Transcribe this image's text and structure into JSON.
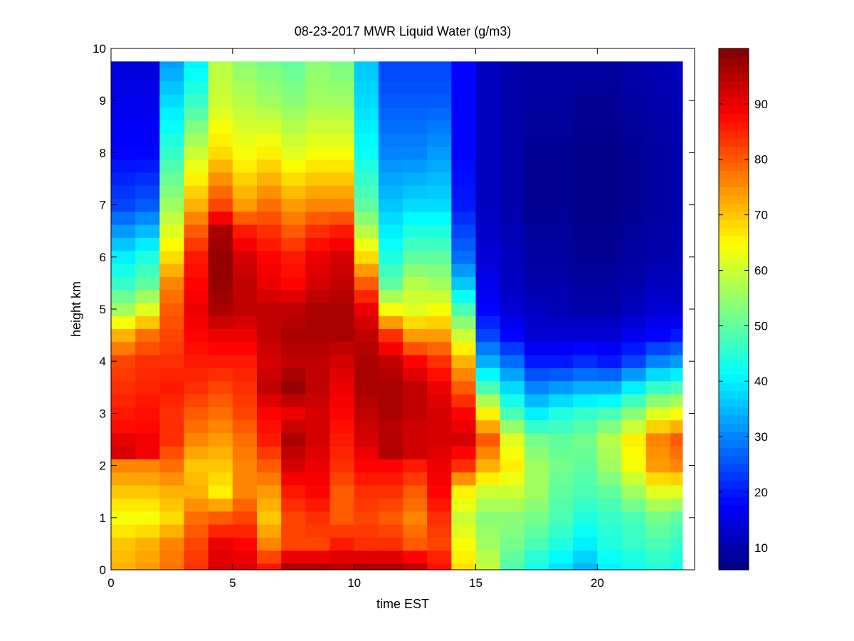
{
  "chart_data": {
    "type": "heatmap",
    "title": "08-23-2017 MWR Liquid Water (g/m3)",
    "xlabel": "time EST",
    "ylabel": "height km",
    "xlim": [
      0,
      24
    ],
    "ylim": [
      0,
      10
    ],
    "xticks": [
      0,
      5,
      10,
      15,
      20
    ],
    "yticks": [
      0,
      1,
      2,
      3,
      4,
      5,
      6,
      7,
      8,
      9,
      10
    ],
    "x": [
      0.5,
      1.5,
      2.5,
      3.5,
      4.5,
      5.5,
      6.5,
      7.5,
      8.5,
      9.5,
      10.5,
      11.5,
      12.5,
      13.5,
      14.5,
      15.5,
      16.5,
      17.5,
      18.5,
      19.5,
      20.5,
      21.5,
      22.5,
      23.5
    ],
    "x_extent": [
      0,
      23.5
    ],
    "y": [
      0,
      0.25,
      0.5,
      0.75,
      1,
      1.25,
      1.5,
      1.75,
      2,
      2.25,
      2.5,
      2.75,
      3,
      3.25,
      3.5,
      3.75,
      4,
      4.25,
      4.5,
      4.75,
      5,
      5.25,
      5.5,
      5.75,
      6,
      6.25,
      6.5,
      6.75,
      7,
      7.25,
      7.5,
      7.75,
      8,
      8.25,
      8.5,
      8.75,
      9,
      9.25,
      9.5,
      9.75
    ],
    "y_extent": [
      0,
      9.75
    ],
    "z_profiles": [
      {
        "h": [
          0,
          0.5,
          1,
          1.5,
          2,
          2.3,
          2.6,
          3,
          3.5,
          4,
          4.5,
          5,
          5.5,
          6,
          7,
          8,
          9,
          9.75
        ],
        "v": [
          72,
          70,
          64,
          70,
          76,
          95,
          88,
          86,
          84,
          82,
          72,
          56,
          46,
          40,
          24,
          18,
          16,
          14
        ]
      },
      {
        "h": [
          0,
          0.5,
          1,
          1.5,
          2,
          2.3,
          2.6,
          3,
          3.5,
          4,
          4.5,
          5,
          5.5,
          6,
          7,
          8,
          9,
          9.75
        ],
        "v": [
          74,
          72,
          64,
          70,
          76,
          92,
          88,
          87,
          85,
          84,
          78,
          62,
          50,
          44,
          26,
          18,
          16,
          14
        ]
      },
      {
        "h": [
          0,
          0.5,
          1,
          1.5,
          2,
          2.5,
          3,
          3.5,
          4,
          4.5,
          5,
          5.5,
          6,
          6.5,
          7,
          8,
          9,
          9.75
        ],
        "v": [
          78,
          76,
          68,
          72,
          78,
          84,
          84,
          86,
          84,
          82,
          80,
          76,
          68,
          62,
          56,
          46,
          38,
          32
        ]
      },
      {
        "h": [
          0,
          0.5,
          1,
          1.5,
          2,
          2.5,
          3,
          3.5,
          4,
          4.5,
          5,
          5.5,
          6,
          6.5,
          7,
          8,
          9,
          9.75
        ],
        "v": [
          84,
          82,
          78,
          72,
          70,
          76,
          80,
          84,
          86,
          88,
          90,
          88,
          86,
          80,
          72,
          60,
          46,
          40
        ]
      },
      {
        "h": [
          0,
          0.5,
          1,
          1.5,
          2,
          2.5,
          3,
          3.5,
          4,
          4.5,
          5,
          5.5,
          6,
          6.5,
          7,
          8,
          9,
          9.75
        ],
        "v": [
          92,
          90,
          80,
          66,
          70,
          74,
          78,
          82,
          86,
          90,
          96,
          98,
          98,
          96,
          82,
          68,
          60,
          58
        ]
      },
      {
        "h": [
          0,
          0.5,
          1,
          1.5,
          2,
          2.5,
          3,
          3.5,
          4,
          4.5,
          5,
          5.5,
          6,
          6.5,
          7,
          8,
          9,
          9.75
        ],
        "v": [
          92,
          88,
          82,
          76,
          76,
          78,
          82,
          84,
          86,
          90,
          94,
          94,
          92,
          86,
          74,
          64,
          58,
          54
        ]
      },
      {
        "h": [
          0,
          0.5,
          1,
          1.5,
          2,
          2.5,
          3,
          3.5,
          4,
          4.5,
          5,
          5.5,
          6,
          6.5,
          7,
          8,
          9,
          9.75
        ],
        "v": [
          88,
          76,
          70,
          74,
          80,
          86,
          88,
          94,
          92,
          94,
          94,
          90,
          88,
          84,
          78,
          66,
          56,
          52
        ]
      },
      {
        "h": [
          0,
          0.5,
          1,
          1.5,
          2,
          2.5,
          3,
          3.5,
          4,
          4.5,
          5,
          5.5,
          6,
          6.5,
          7,
          8,
          9,
          9.75
        ],
        "v": [
          98,
          82,
          82,
          86,
          92,
          96,
          90,
          98,
          94,
          96,
          94,
          88,
          86,
          80,
          74,
          62,
          54,
          50
        ]
      },
      {
        "h": [
          0,
          0.5,
          1,
          1.5,
          2,
          2.5,
          3,
          3.5,
          4,
          4.5,
          5,
          5.5,
          6,
          6.5,
          7,
          8,
          9,
          9.75
        ],
        "v": [
          98,
          82,
          84,
          88,
          90,
          92,
          92,
          94,
          94,
          96,
          96,
          92,
          90,
          84,
          76,
          64,
          56,
          54
        ]
      },
      {
        "h": [
          0,
          0.5,
          1,
          1.5,
          2,
          2.5,
          3,
          3.5,
          4,
          4.5,
          5,
          5.5,
          6,
          6.5,
          7,
          8,
          9,
          9.75
        ],
        "v": [
          96,
          86,
          80,
          80,
          84,
          86,
          88,
          90,
          92,
          96,
          96,
          94,
          92,
          86,
          76,
          64,
          56,
          52
        ]
      },
      {
        "h": [
          0,
          0.5,
          1,
          1.5,
          2,
          2.5,
          3,
          3.5,
          4,
          4.5,
          5,
          5.5,
          6,
          6.5,
          7,
          8,
          9,
          9.75
        ],
        "v": [
          98,
          84,
          82,
          84,
          88,
          92,
          94,
          96,
          96,
          94,
          90,
          80,
          68,
          58,
          50,
          42,
          38,
          36
        ]
      },
      {
        "h": [
          0,
          0.5,
          1,
          1.5,
          2,
          2.3,
          2.6,
          3,
          3.5,
          4,
          4.5,
          5,
          5.5,
          6,
          7,
          8,
          9,
          9.75
        ],
        "v": [
          98,
          84,
          80,
          84,
          88,
          97,
          94,
          96,
          96,
          94,
          84,
          64,
          50,
          44,
          36,
          30,
          26,
          24
        ]
      },
      {
        "h": [
          0,
          0.5,
          1,
          1.5,
          2,
          2.3,
          2.6,
          3,
          3.5,
          4,
          4.5,
          5,
          5.5,
          6,
          7,
          8,
          9,
          9.75
        ],
        "v": [
          96,
          80,
          76,
          80,
          86,
          94,
          92,
          94,
          94,
          88,
          74,
          62,
          58,
          50,
          38,
          30,
          26,
          24
        ]
      },
      {
        "h": [
          0,
          0.5,
          1,
          1.5,
          2,
          2.5,
          3,
          3.5,
          4,
          4.5,
          5,
          5.5,
          6,
          7,
          8,
          9,
          9.75
        ],
        "v": [
          88,
          82,
          84,
          88,
          90,
          92,
          92,
          90,
          84,
          74,
          64,
          56,
          50,
          38,
          32,
          26,
          24
        ]
      },
      {
        "h": [
          0,
          0.5,
          1,
          1.5,
          2,
          2.5,
          3,
          3.5,
          4,
          4.5,
          5,
          5.5,
          6,
          7,
          8,
          9,
          9.75
        ],
        "v": [
          68,
          64,
          60,
          66,
          84,
          92,
          88,
          80,
          72,
          60,
          48,
          36,
          28,
          20,
          18,
          18,
          18
        ]
      },
      {
        "h": [
          0,
          0.5,
          1,
          1.5,
          2,
          2.5,
          3,
          3.5,
          4,
          4.5,
          5,
          5.5,
          6,
          7,
          8,
          9,
          9.75
        ],
        "v": [
          60,
          56,
          54,
          60,
          72,
          80,
          66,
          48,
          34,
          24,
          18,
          16,
          14,
          12,
          12,
          12,
          12
        ]
      },
      {
        "h": [
          0,
          0.5,
          1,
          1.5,
          2,
          2.5,
          3,
          3.5,
          4,
          4.5,
          5,
          5.5,
          6,
          7,
          8,
          9,
          9.75
        ],
        "v": [
          48,
          52,
          54,
          60,
          66,
          62,
          48,
          38,
          28,
          18,
          14,
          12,
          12,
          10,
          10,
          10,
          10
        ]
      },
      {
        "h": [
          0,
          0.5,
          1,
          1.5,
          2,
          2.5,
          3,
          3.5,
          4,
          4.5,
          5,
          5.5,
          6,
          7,
          8,
          9,
          9.75
        ],
        "v": [
          42,
          48,
          52,
          56,
          56,
          52,
          40,
          30,
          20,
          14,
          12,
          10,
          9,
          8,
          8,
          9,
          9
        ]
      },
      {
        "h": [
          0,
          0.5,
          1,
          1.5,
          2,
          2.5,
          3,
          3.5,
          4,
          4.5,
          5,
          5.5,
          6,
          7,
          8,
          9,
          9.75
        ],
        "v": [
          38,
          44,
          48,
          50,
          52,
          50,
          44,
          32,
          20,
          14,
          11,
          10,
          9,
          8,
          8,
          9,
          9
        ]
      },
      {
        "h": [
          0,
          0.5,
          1,
          1.5,
          2,
          2.5,
          3,
          3.5,
          4,
          4.5,
          5,
          5.5,
          6,
          7,
          8,
          9,
          9.75
        ],
        "v": [
          34,
          40,
          44,
          48,
          50,
          52,
          46,
          34,
          22,
          14,
          10,
          9,
          8,
          7,
          7,
          8,
          9
        ]
      },
      {
        "h": [
          0,
          0.5,
          1,
          1.5,
          2,
          2.5,
          3,
          3.5,
          4,
          4.5,
          5,
          5.5,
          6,
          7,
          8,
          9,
          9.75
        ],
        "v": [
          40,
          44,
          46,
          50,
          56,
          58,
          48,
          34,
          20,
          14,
          10,
          9,
          8,
          7,
          7,
          8,
          9
        ]
      },
      {
        "h": [
          0,
          0.5,
          1,
          1.5,
          2,
          2.5,
          3,
          3.5,
          4,
          4.5,
          5,
          5.5,
          6,
          7,
          8,
          9,
          9.75
        ],
        "v": [
          42,
          46,
          48,
          56,
          64,
          66,
          54,
          40,
          24,
          16,
          12,
          10,
          9,
          8,
          8,
          9,
          10
        ]
      },
      {
        "h": [
          0,
          0.5,
          1,
          1.5,
          2,
          2.5,
          3,
          3.5,
          4,
          4.5,
          5,
          5.5,
          6,
          7,
          8,
          9,
          9.75
        ],
        "v": [
          44,
          48,
          52,
          62,
          74,
          76,
          62,
          46,
          30,
          18,
          14,
          12,
          10,
          9,
          9,
          10,
          11
        ]
      },
      {
        "h": [
          0,
          0.5,
          1,
          1.5,
          2,
          2.5,
          3,
          3.5,
          4,
          4.5,
          5,
          5.5,
          6,
          7,
          8,
          9,
          9.75
        ],
        "v": [
          42,
          46,
          50,
          62,
          76,
          80,
          64,
          48,
          32,
          20,
          14,
          12,
          11,
          10,
          10,
          11,
          12
        ]
      }
    ],
    "colorbar": {
      "colormap": "jet",
      "range": [
        6,
        100
      ],
      "ticks": [
        10,
        20,
        30,
        40,
        50,
        60,
        70,
        80,
        90
      ]
    },
    "grid": false,
    "legend": "none"
  }
}
